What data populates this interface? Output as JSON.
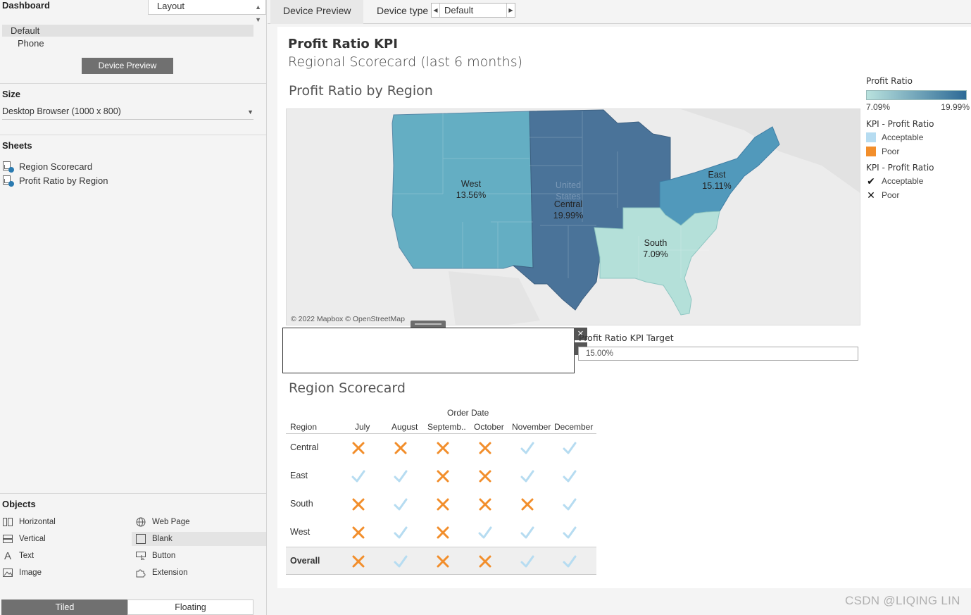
{
  "left_panel": {
    "dashboard_title": "Dashboard",
    "layout_dropdown": "Layout",
    "devices": [
      "Default",
      "Phone"
    ],
    "device_preview_button": "Device Preview",
    "size_title": "Size",
    "size_value": "Desktop Browser (1000 x 800)",
    "sheets_title": "Sheets",
    "sheets": [
      "Region Scorecard",
      "Profit Ratio by Region"
    ],
    "objects_title": "Objects",
    "objects": {
      "horizontal": "Horizontal",
      "web_page": "Web Page",
      "vertical": "Vertical",
      "blank": "Blank",
      "text": "Text",
      "button": "Button",
      "image": "Image",
      "extension": "Extension"
    },
    "tiled": "Tiled",
    "floating": "Floating"
  },
  "topbar": {
    "tab_device_preview": "Device Preview",
    "device_type_label": "Device type",
    "device_type_value": "Default"
  },
  "dashboard": {
    "title": "Profit Ratio KPI",
    "subtitle": "Regional Scorecard (last 6 months)",
    "map": {
      "title": "Profit Ratio by Region",
      "credit": "© 2022 Mapbox © OpenStreetMap",
      "country_label_1": "United",
      "country_label_2": "States",
      "regions": [
        {
          "name": "West",
          "value": "13.56%",
          "color": "#64aec3"
        },
        {
          "name": "Central",
          "value": "19.99%",
          "color": "#4a7399"
        },
        {
          "name": "East",
          "value": "15.11%",
          "color": "#5199bb"
        },
        {
          "name": "South",
          "value": "7.09%",
          "color": "#b4e0d9"
        }
      ]
    },
    "legend": {
      "ratio_title": "Profit Ratio",
      "ratio_min": "7.09%",
      "ratio_max": "19.99%",
      "ratio_colors": [
        "#b9e2de",
        "#2d6a96"
      ],
      "kpi_color_title": "KPI - Profit Ratio",
      "kpi_color_items": [
        {
          "label": "Acceptable",
          "color": "#b6dcf1"
        },
        {
          "label": "Poor",
          "color": "#f28e2b"
        }
      ],
      "kpi_shape_title": "KPI - Profit Ratio",
      "kpi_shape_items": [
        {
          "label": "Acceptable",
          "icon": "check-icon"
        },
        {
          "label": "Poor",
          "icon": "x-icon"
        }
      ]
    },
    "parameter": {
      "label": "Profit Ratio KPI Target",
      "value": "15.00%"
    },
    "scorecard": {
      "title": "Region Scorecard",
      "column_group": "Order Date",
      "row_header": "Region",
      "months": [
        "July",
        "August",
        "Septemb..",
        "October",
        "November",
        "December"
      ],
      "rows": [
        {
          "region": "Central",
          "marks": [
            "poor",
            "poor",
            "poor",
            "poor",
            "acceptable",
            "acceptable"
          ]
        },
        {
          "region": "East",
          "marks": [
            "acceptable",
            "acceptable",
            "poor",
            "poor",
            "acceptable",
            "acceptable"
          ]
        },
        {
          "region": "South",
          "marks": [
            "poor",
            "acceptable",
            "poor",
            "poor",
            "poor",
            "acceptable"
          ]
        },
        {
          "region": "West",
          "marks": [
            "poor",
            "acceptable",
            "poor",
            "acceptable",
            "acceptable",
            "acceptable"
          ]
        },
        {
          "region": "Overall",
          "marks": [
            "poor",
            "acceptable",
            "poor",
            "poor",
            "acceptable",
            "acceptable"
          ]
        }
      ],
      "poor_color": "#f28e2b",
      "acceptable_color": "#b6dcf1"
    }
  },
  "watermark": "CSDN @LIQING LIN"
}
